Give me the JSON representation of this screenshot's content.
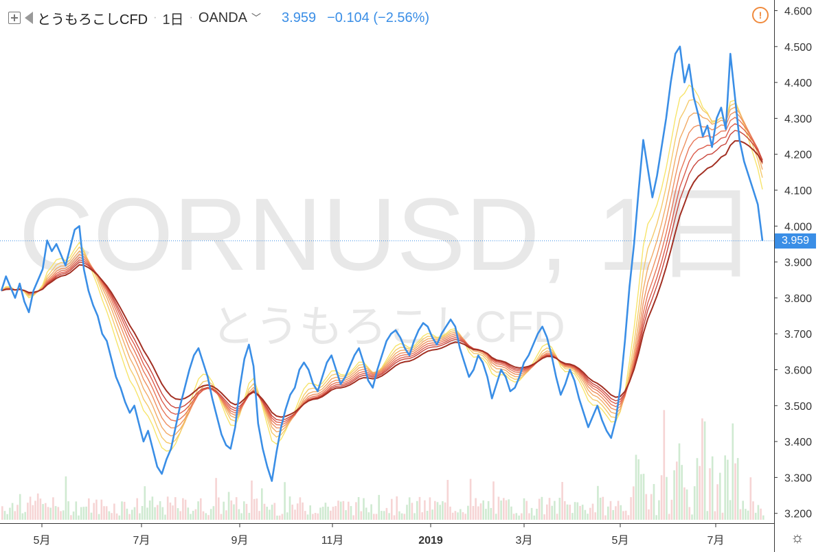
{
  "header": {
    "symbol": "とうもろこしCFD",
    "interval": "1日",
    "exchange": "OANDA",
    "price": "3.959",
    "change": "−0.104 (−2.56%)"
  },
  "watermark": {
    "main": "CORNUSD, 1日",
    "sub": "とうもろこしCFD"
  },
  "last_price_label": "3.959",
  "colors": {
    "price_line": "#3a8ee6",
    "ribbon": [
      "#f7e46a",
      "#f5c96b",
      "#f2ab66",
      "#ee905f",
      "#e77557",
      "#dc5b4a",
      "#c8443a",
      "#a22f22"
    ],
    "volume_up": "#c7e6c9",
    "volume_down": "#f4cccc"
  },
  "icons": [
    "add-box-icon",
    "flag-icon",
    "alert-icon",
    "gear-icon"
  ],
  "chart_data": {
    "type": "line",
    "title": "とうもろこしCFD · 1日 · OANDA",
    "ylim": [
      3.15,
      4.63
    ],
    "y_ticks": [
      "4.600",
      "4.500",
      "4.400",
      "4.300",
      "4.200",
      "4.100",
      "4.000",
      "3.900",
      "3.800",
      "3.700",
      "3.600",
      "3.500",
      "3.400",
      "3.300",
      "3.200"
    ],
    "x_ticks": [
      "5月",
      "7月",
      "9月",
      "11月",
      "2019",
      "3月",
      "5月",
      "7月"
    ],
    "last_price": 3.959,
    "series": [
      {
        "values": [
          3.82,
          3.86,
          3.83,
          3.8,
          3.84,
          3.79,
          3.76,
          3.82,
          3.85,
          3.88,
          3.96,
          3.93,
          3.95,
          3.92,
          3.89,
          3.94,
          3.99,
          4.0,
          3.88,
          3.82,
          3.78,
          3.75,
          3.7,
          3.68,
          3.63,
          3.58,
          3.55,
          3.51,
          3.48,
          3.5,
          3.45,
          3.4,
          3.43,
          3.38,
          3.33,
          3.31,
          3.35,
          3.38,
          3.44,
          3.5,
          3.55,
          3.6,
          3.64,
          3.66,
          3.62,
          3.58,
          3.52,
          3.47,
          3.42,
          3.39,
          3.38,
          3.44,
          3.55,
          3.63,
          3.67,
          3.61,
          3.45,
          3.38,
          3.33,
          3.29,
          3.37,
          3.44,
          3.49,
          3.53,
          3.55,
          3.6,
          3.62,
          3.6,
          3.56,
          3.54,
          3.58,
          3.62,
          3.64,
          3.6,
          3.56,
          3.58,
          3.61,
          3.64,
          3.66,
          3.62,
          3.57,
          3.55,
          3.6,
          3.64,
          3.68,
          3.7,
          3.71,
          3.69,
          3.66,
          3.64,
          3.68,
          3.71,
          3.73,
          3.72,
          3.69,
          3.67,
          3.7,
          3.72,
          3.74,
          3.72,
          3.66,
          3.62,
          3.58,
          3.6,
          3.64,
          3.62,
          3.58,
          3.52,
          3.56,
          3.6,
          3.58,
          3.54,
          3.55,
          3.58,
          3.62,
          3.64,
          3.67,
          3.7,
          3.72,
          3.69,
          3.64,
          3.58,
          3.53,
          3.56,
          3.6,
          3.57,
          3.52,
          3.48,
          3.44,
          3.47,
          3.5,
          3.46,
          3.43,
          3.41,
          3.46,
          3.55,
          3.68,
          3.83,
          3.95,
          4.1,
          4.24,
          4.16,
          4.08,
          4.14,
          4.22,
          4.3,
          4.4,
          4.48,
          4.5,
          4.4,
          4.45,
          4.36,
          4.31,
          4.25,
          4.28,
          4.22,
          4.3,
          4.33,
          4.27,
          4.48,
          4.36,
          4.24,
          4.18,
          4.14,
          4.1,
          4.06,
          3.959
        ]
      }
    ]
  }
}
